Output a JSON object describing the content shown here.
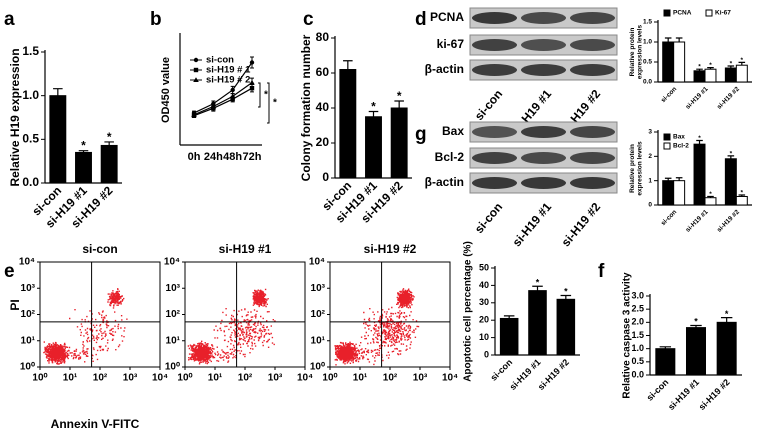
{
  "chart_data": [
    {
      "panel": "a",
      "type": "bar",
      "ylabel": "Relative  H19 expression",
      "categories": [
        "si-con",
        "si-H19 #1",
        "si-H19 #2"
      ],
      "values": [
        1.0,
        0.35,
        0.43
      ],
      "errors": [
        0.08,
        0.02,
        0.04
      ],
      "significance": [
        null,
        "*",
        "*"
      ],
      "color": "#000000",
      "ylim": [
        0,
        1.5
      ],
      "yticks": [
        {
          "value": 0,
          "label": "0.0"
        },
        {
          "value": 0.5,
          "label": "0.5"
        },
        {
          "value": 1,
          "label": "1.0"
        },
        {
          "value": 1.5,
          "label": "1.5"
        }
      ]
    },
    {
      "panel": "b",
      "type": "line",
      "ylabel": "OD450 value",
      "categories": [
        "0h",
        "24h",
        "48h",
        "72h"
      ],
      "ylim": [
        0,
        1.2
      ],
      "significance": [
        "*",
        "*"
      ],
      "series": [
        {
          "name": "si-con",
          "color": "#000000",
          "values": [
            0.35,
            0.45,
            0.6,
            0.9
          ],
          "errors": [
            0.02,
            0.03,
            0.04,
            0.06
          ]
        },
        {
          "name": "si-H19 # 1",
          "color": "#000000",
          "values": [
            0.32,
            0.4,
            0.5,
            0.62
          ],
          "errors": [
            0.02,
            0.03,
            0.03,
            0.04
          ]
        },
        {
          "name": "si-H19 # 2",
          "color": "#000000",
          "values": [
            0.33,
            0.42,
            0.53,
            0.68
          ],
          "errors": [
            0.02,
            0.03,
            0.03,
            0.05
          ]
        }
      ]
    },
    {
      "panel": "c",
      "type": "bar",
      "ylabel": "Colony formation number",
      "categories": [
        "si-con",
        "si-H19 #1",
        "si-H19 #2"
      ],
      "values": [
        62,
        35,
        40
      ],
      "errors": [
        5,
        3,
        4
      ],
      "significance": [
        null,
        "*",
        "*"
      ],
      "color": "#000000",
      "ylim": [
        0,
        80
      ],
      "yticks": [
        0,
        20,
        40,
        60,
        80
      ]
    },
    {
      "panel": "d",
      "type": "blot",
      "rows": [
        "PCNA",
        "ki-67",
        "β-actin"
      ],
      "lanes": [
        "si-con",
        "si-H19 #1",
        "si-H19 #2"
      ]
    },
    {
      "type": "grouped-bar",
      "ylabel": [
        "Relative protein",
        "expression levels"
      ],
      "categories": [
        "si-con",
        "si-H19 #1",
        "si-H19 #2"
      ],
      "ylim": [
        0,
        1.5
      ],
      "yticks": [
        {
          "value": 0,
          "label": "0.0"
        },
        {
          "value": 0.5,
          "label": "0.5"
        },
        {
          "value": 1,
          "label": "1.0"
        },
        {
          "value": 1.5,
          "label": "1.5"
        }
      ],
      "legend": "top",
      "series": [
        {
          "name": "PCNA",
          "color": "#000000",
          "values": [
            1.0,
            0.28,
            0.35
          ],
          "errors": [
            0.1,
            0.04,
            0.05
          ],
          "significance": [
            null,
            "*",
            "*"
          ]
        },
        {
          "name": "Ki-67",
          "color": "#ffffff",
          "values": [
            1.0,
            0.32,
            0.42
          ],
          "errors": [
            0.1,
            0.04,
            0.07
          ],
          "significance": [
            null,
            "*",
            "*"
          ]
        }
      ]
    },
    {
      "panel": "g",
      "type": "blot",
      "rows": [
        "Bax",
        "Bcl-2",
        "β-actin"
      ],
      "lanes": [
        "si-con",
        "si-H19 #1",
        "si-H19 #2"
      ]
    },
    {
      "type": "grouped-bar",
      "ylabel": [
        "Relative protein",
        "expression levels"
      ],
      "categories": [
        "si-con",
        "si-H19 #1",
        "si-H19 #2"
      ],
      "ylim": [
        0,
        3
      ],
      "yticks": [
        0,
        1,
        2,
        3
      ],
      "legend": "upper left",
      "series": [
        {
          "name": "Bax",
          "color": "#000000",
          "values": [
            1.0,
            2.5,
            1.9
          ],
          "errors": [
            0.1,
            0.15,
            0.12
          ],
          "significance": [
            null,
            "*",
            "*"
          ]
        },
        {
          "name": "Bcl-2",
          "color": "#ffffff",
          "values": [
            1.0,
            0.3,
            0.35
          ],
          "errors": [
            0.12,
            0.05,
            0.06
          ],
          "significance": [
            null,
            "*",
            "*"
          ]
        }
      ]
    },
    {
      "panel": "e",
      "type": "flow-cytometry",
      "titles": [
        "si-con",
        "si-H19 #1",
        "si-H19 #2"
      ],
      "xlabel": "Annexin V-FITC",
      "ylabel": "PI",
      "log_scale": true,
      "color": "#e8202a",
      "xlim": [
        1,
        10000
      ],
      "ylim": [
        1,
        10000
      ],
      "xticks": [
        {
          "value": 1,
          "label": "10⁰"
        },
        {
          "value": 10,
          "label": "10¹"
        },
        {
          "value": 100,
          "label": "10²"
        },
        {
          "value": 1000,
          "label": "10³"
        },
        {
          "value": 10000,
          "label": "10⁴"
        }
      ],
      "yticks": [
        {
          "value": 1,
          "label": "10⁰"
        },
        {
          "value": 10,
          "label": "10¹"
        },
        {
          "value": 100,
          "label": "10²"
        },
        {
          "value": 1000,
          "label": "10³"
        },
        {
          "value": 10000,
          "label": "10⁴"
        }
      ]
    },
    {
      "type": "bar",
      "ylabel": "Apoptotic cell percentage (%)",
      "categories": [
        "si-con",
        "si-H19 #1",
        "si-H19 #2"
      ],
      "values": [
        21,
        37,
        32
      ],
      "errors": [
        1.5,
        2.5,
        2.2
      ],
      "significance": [
        null,
        "*",
        "*"
      ],
      "color": "#000000",
      "ylim": [
        0,
        50
      ],
      "yticks": [
        0,
        10,
        20,
        30,
        40,
        50
      ]
    },
    {
      "panel": "f",
      "type": "bar",
      "ylabel": "Relative caspase 3 activity",
      "categories": [
        "si-con",
        "si-H19 #1",
        "si-H19 #2"
      ],
      "values": [
        1.0,
        1.8,
        2.0
      ],
      "errors": [
        0.07,
        0.08,
        0.18
      ],
      "significance": [
        null,
        "*",
        "*"
      ],
      "color": "#000000",
      "ylim": [
        0,
        3
      ],
      "yticks": [
        {
          "value": 0,
          "label": "0.0"
        },
        {
          "value": 0.5,
          "label": "0.5"
        },
        {
          "value": 1,
          "label": "1.0"
        },
        {
          "value": 1.5,
          "label": "1.5"
        },
        {
          "value": 2,
          "label": "2.0"
        },
        {
          "value": 2.5,
          "label": "2.5"
        },
        {
          "value": 3,
          "label": "3.0"
        }
      ]
    }
  ]
}
